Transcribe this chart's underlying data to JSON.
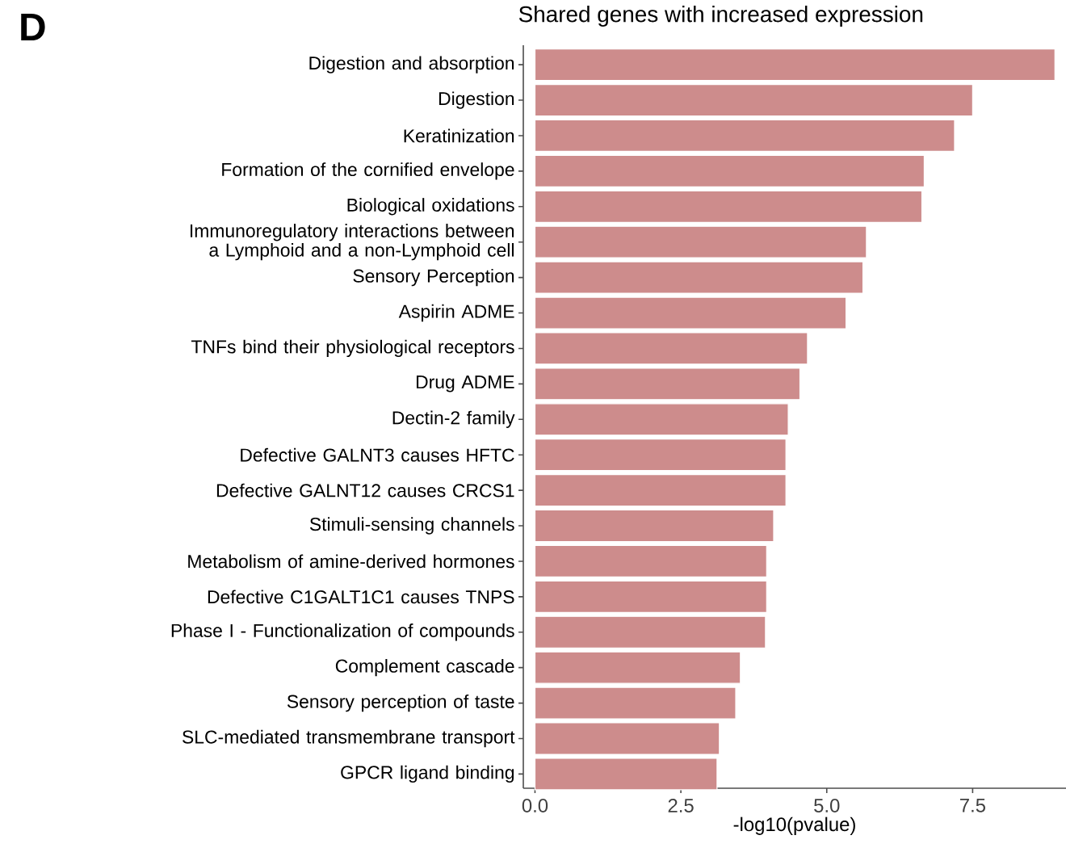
{
  "chart_data": {
    "type": "bar",
    "orientation": "horizontal",
    "title": "Shared genes with increased expression",
    "xlabel": "-log10(pvalue)",
    "annotations": [
      "D"
    ],
    "categories": [
      "Digestion and absorption",
      "Digestion",
      "Keratinization",
      "Formation of the cornified envelope",
      "Biological oxidations",
      "Immunoregulatory interactions between a Lymphoid and a non-Lymphoid cell",
      "Sensory Perception",
      "Aspirin ADME",
      "TNFs bind their physiological receptors",
      "Drug ADME",
      "Dectin-2 family",
      "Defective GALNT3 causes HFTC",
      "Defective GALNT12 causes CRCS1",
      "Stimuli-sensing channels",
      "Metabolism of amine-derived hormones",
      "Defective C1GALT1C1 causes TNPS",
      "Phase I - Functionalization of compounds",
      "Complement cascade",
      "Sensory perception of taste",
      "SLC-mediated transmembrane transport",
      "GPCR ligand binding"
    ],
    "values": [
      8.91,
      7.5,
      7.19,
      6.67,
      6.63,
      5.68,
      5.62,
      5.33,
      4.67,
      4.54,
      4.34,
      4.3,
      4.3,
      4.09,
      3.97,
      3.97,
      3.95,
      3.52,
      3.44,
      3.16,
      3.12
    ],
    "color": "#cd8c8c",
    "xlim": [
      -0.2,
      9.1
    ],
    "xticks": [
      {
        "value": 0,
        "label": "0.0"
      },
      {
        "value": 2.5,
        "label": "2.5"
      },
      {
        "value": 5,
        "label": "5.0"
      },
      {
        "value": 7.5,
        "label": "7.5"
      }
    ],
    "grid": false
  }
}
